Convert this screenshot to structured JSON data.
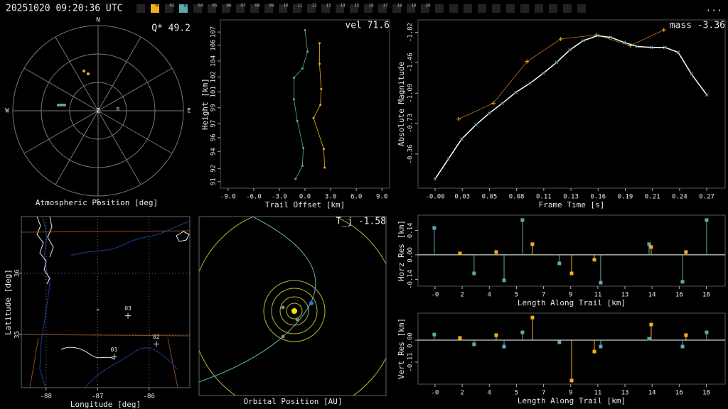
{
  "header": {
    "timestamp": "20251020 09:20:36 UTC",
    "menu": "...",
    "tabs": [
      {
        "label": "01",
        "color": "#f2b01e"
      },
      {
        "label": "02"
      },
      {
        "label": "03",
        "color": "#5fa8ae"
      },
      {
        "label": "04"
      },
      {
        "label": "05"
      },
      {
        "label": "06"
      },
      {
        "label": "07"
      },
      {
        "label": "08"
      },
      {
        "label": "09"
      },
      {
        "label": "10"
      },
      {
        "label": "11"
      },
      {
        "label": "12"
      },
      {
        "label": "13"
      },
      {
        "label": "14"
      },
      {
        "label": "15"
      },
      {
        "label": "16"
      },
      {
        "label": "17"
      },
      {
        "label": "18"
      },
      {
        "label": "19"
      },
      {
        "label": "20"
      }
    ]
  },
  "chart_data": [
    {
      "type": "polar",
      "title": "Atmospheric Position [deg]",
      "annotation": "Q* 49.2",
      "directions": [
        "N",
        "E",
        "S",
        "W"
      ],
      "center_label": "Z",
      "marker_label": "R",
      "rlim": [
        0,
        90
      ],
      "rticks": [
        30,
        60,
        90
      ],
      "series": [
        {
          "color": "#f2b01e",
          "x": [
            340.3,
            344.9
          ],
          "values": [
            44.6,
            40.4
          ]
        },
        {
          "color": "#5fa8ae",
          "x": [
            278.1,
            278.7,
            279.2,
            279.7
          ],
          "values": [
            42.4,
            40.2,
            38.0,
            35.8
          ]
        }
      ]
    },
    {
      "type": "line",
      "annotation": "vel 71.6",
      "xlabel": "Trail Offset [km]",
      "ylabel": "Height [km]",
      "xlim": [
        -9.9,
        9.9
      ],
      "ylim": [
        90.3,
        108.3
      ],
      "xticks": [
        {
          "value": -9,
          "label": "-9.0"
        },
        {
          "value": -6,
          "label": "-6.0"
        },
        {
          "value": -3,
          "label": "-3.0"
        },
        {
          "value": 0,
          "label": "0.0"
        },
        {
          "value": 3,
          "label": "3.0"
        },
        {
          "value": 6,
          "label": "6.0"
        },
        {
          "value": 9,
          "label": "9.0"
        }
      ],
      "yticks": [
        91,
        {
          "value": 92.4,
          "label": "92"
        },
        {
          "value": 94.2,
          "label": "94"
        },
        {
          "value": 95.7,
          "label": "96"
        },
        {
          "value": 97.2,
          "label": "97"
        },
        {
          "value": 98.9,
          "label": "99"
        },
        {
          "value": 100.6,
          "label": "101"
        },
        {
          "value": 102.2,
          "label": "102"
        },
        {
          "value": 103.9,
          "label": "104"
        },
        {
          "value": 105.6,
          "label": "106"
        },
        107
      ],
      "series": [
        {
          "color": "#5fa8ae",
          "line_color": "#5fa8ae",
          "marker": "dot",
          "x": [
            -1.1,
            -0.3,
            -0.2,
            -0.9,
            -1.3,
            -1.3,
            -0.3,
            0.3,
            0.0
          ],
          "values": [
            91.3,
            92.7,
            94.6,
            97.5,
            99.8,
            102.1,
            103.1,
            104.9,
            107.2
          ]
        },
        {
          "color": "#f2b01e",
          "line_color": "#f2b01e",
          "marker": "dot",
          "x": [
            1.7,
            1.7,
            1.9,
            1.8,
            1.0,
            2.2,
            2.3
          ],
          "values": [
            105.8,
            103.6,
            100.9,
            99.2,
            97.8,
            94.5,
            92.5
          ]
        }
      ]
    },
    {
      "type": "line",
      "annotation": "mass -3.36",
      "xlabel": "Frame Time [s]",
      "ylabel": "Absolute Magnitude",
      "xlim": [
        -0.0167,
        0.284
      ],
      "ylim": [
        0.05,
        -1.97
      ],
      "xticks": [
        {
          "value": 0,
          "label": "-0.00"
        },
        {
          "value": 0.0266,
          "label": "0.03"
        },
        {
          "value": 0.0532,
          "label": "0.05"
        },
        {
          "value": 0.0798,
          "label": "0.08"
        },
        {
          "value": 0.1064,
          "label": "0.11"
        },
        {
          "value": 0.133,
          "label": "0.13"
        },
        {
          "value": 0.1596,
          "label": "0.16"
        },
        {
          "value": 0.1862,
          "label": "0.19"
        },
        {
          "value": 0.2128,
          "label": "0.21"
        },
        {
          "value": 0.2394,
          "label": "0.24"
        },
        {
          "value": 0.266,
          "label": "0.27"
        }
      ],
      "yticks": [
        -1.82,
        -1.46,
        -1.09,
        -0.73,
        -0.36
      ],
      "series": [
        {
          "color": "#f2b01e",
          "line_color": "#c07818",
          "marker": "plus",
          "x": [
            0.023,
            0.057,
            0.09,
            0.123,
            0.158,
            0.191,
            0.224
          ],
          "values": [
            -0.78,
            -0.97,
            -1.47,
            -1.74,
            -1.79,
            -1.66,
            -1.85
          ]
        },
        {
          "color": "#5fa8ae",
          "line_color": "#ffffff",
          "marker": "cross",
          "x": [
            0,
            0.013,
            0.026,
            0.04,
            0.053,
            0.066,
            0.079,
            0.093,
            0.106,
            0.119,
            0.132,
            0.145,
            0.159,
            0.172,
            0.185,
            0.198,
            0.212,
            0.225,
            0.238,
            0.251,
            0.266
          ],
          "values": [
            -0.06,
            -0.3,
            -0.54,
            -0.71,
            -0.85,
            -0.97,
            -1.1,
            -1.21,
            -1.33,
            -1.46,
            -1.61,
            -1.72,
            -1.78,
            -1.76,
            -1.7,
            -1.65,
            -1.64,
            -1.64,
            -1.58,
            -1.32,
            -1.07
          ]
        }
      ]
    },
    {
      "type": "map",
      "xlabel": "Longitude [deg]",
      "ylabel": "Latitude [deg]",
      "grid": true,
      "xlim": [
        -88.48,
        -85.21
      ],
      "ylim": [
        34.14,
        36.92
      ],
      "xticks": [
        -88,
        -87,
        -86
      ],
      "yticks": [
        35,
        36
      ],
      "stations": {
        "color": "#dddddd",
        "labels": [
          "01",
          "02",
          "03"
        ],
        "x": [
          -86.68,
          -85.86,
          -86.41
        ],
        "values": [
          34.64,
          34.85,
          35.31
        ]
      },
      "series": [
        {
          "color": "#f2b01e",
          "x": [
            -87.02,
            -86.97
          ],
          "values": [
            35.4,
            35.41
          ]
        }
      ]
    },
    {
      "type": "orbit",
      "title": "Orbital Position [AU]",
      "annotation": "T_j -1.58"
    },
    {
      "type": "stem",
      "xlabel": "Length Along Trail [km]",
      "ylabel": "Horz Res [km]",
      "xlim": [
        -1.13,
        19.25
      ],
      "ylim": [
        -0.179,
        0.227
      ],
      "xticks": [
        {
          "value": 0,
          "label": "-0"
        },
        {
          "value": 1.8,
          "label": "2"
        },
        {
          "value": 3.6,
          "label": "4"
        },
        {
          "value": 5.4,
          "label": "5"
        },
        {
          "value": 7.2,
          "label": "7"
        },
        9,
        {
          "value": 10.8,
          "label": "11"
        },
        {
          "value": 12.6,
          "label": "13"
        },
        {
          "value": 14.4,
          "label": "14"
        },
        {
          "value": 16.2,
          "label": "16"
        },
        18
      ],
      "yticks": [
        -0.14,
        {
          "value": 0,
          "label": "0.00"
        },
        0.14
      ],
      "series": [
        {
          "color": "#5fa8ae",
          "x": [
            -0.05,
            2.59,
            4.58,
            5.8,
            8.25,
            10.99,
            14.2,
            16.42,
            18.02
          ],
          "values": [
            0.154,
            -0.106,
            -0.146,
            0.199,
            -0.049,
            -0.159,
            0.061,
            -0.154,
            0.199
          ]
        },
        {
          "color": "#f2b01e",
          "x": [
            1.65,
            4.06,
            6.46,
            9.06,
            10.57,
            14.34,
            16.65
          ],
          "values": [
            0.008,
            0.016,
            0.061,
            -0.106,
            -0.028,
            0.045,
            0.016
          ]
        }
      ]
    },
    {
      "type": "stem",
      "xlabel": "Length Along Trail [km]",
      "ylabel": "Vert Res [km]",
      "xlim": [
        -1.13,
        19.25
      ],
      "ylim": [
        -0.22,
        0.135
      ],
      "xticks": [
        {
          "value": 0,
          "label": "-0"
        },
        {
          "value": 1.8,
          "label": "2"
        },
        {
          "value": 3.6,
          "label": "4"
        },
        {
          "value": 5.4,
          "label": "5"
        },
        {
          "value": 7.2,
          "label": "7"
        },
        9,
        {
          "value": 10.8,
          "label": "11"
        },
        {
          "value": 12.6,
          "label": "13"
        },
        {
          "value": 14.4,
          "label": "14"
        },
        {
          "value": 16.2,
          "label": "16"
        },
        18
      ],
      "yticks": [
        -0.11,
        {
          "value": 0,
          "label": "0.00"
        }
      ],
      "series": [
        {
          "color": "#5fa8ae",
          "x": [
            -0.05,
            2.59,
            4.58,
            5.8,
            8.25,
            10.99,
            14.2,
            16.42,
            18.02
          ],
          "values": [
            0.028,
            -0.021,
            -0.032,
            0.039,
            -0.011,
            -0.032,
            0.007,
            -0.032,
            0.039
          ]
        },
        {
          "color": "#f2b01e",
          "x": [
            1.65,
            4.06,
            6.46,
            9.06,
            10.57,
            14.34,
            16.65
          ],
          "values": [
            0.011,
            0.025,
            0.113,
            -0.202,
            -0.057,
            0.078,
            0.025
          ]
        }
      ]
    }
  ]
}
